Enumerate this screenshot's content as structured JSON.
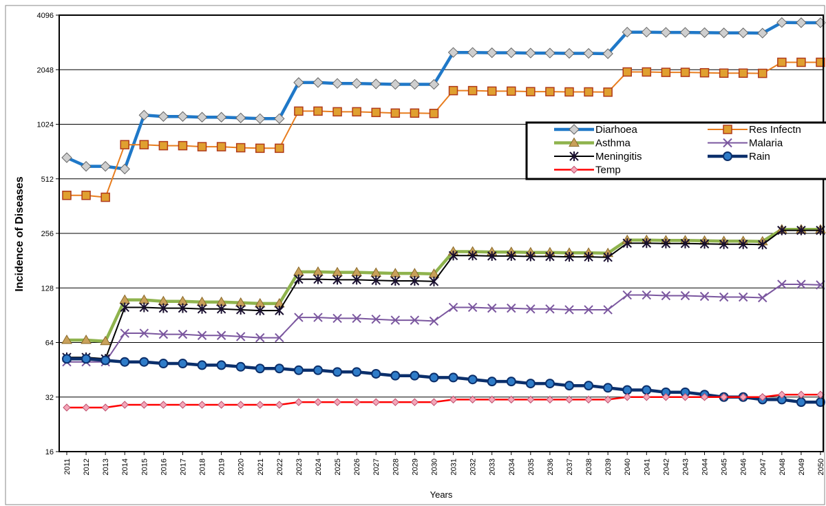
{
  "chart_data": {
    "type": "line",
    "title": "",
    "xlabel": "Years",
    "ylabel": "Incidence of Diseases",
    "yscale": "log2",
    "ylim": [
      16,
      4096
    ],
    "yticks": [
      16,
      32,
      64,
      128,
      256,
      512,
      1024,
      2048,
      4096
    ],
    "grid": "horizontal",
    "legend_position": "top-right",
    "x": [
      "2011",
      "2012",
      "2013",
      "2014",
      "2015",
      "2016",
      "2017",
      "2018",
      "2019",
      "2020",
      "2021",
      "2022",
      "2023",
      "2024",
      "2025",
      "2026",
      "2027",
      "2028",
      "2029",
      "2030",
      "2031",
      "2032",
      "2033",
      "2034",
      "2035",
      "2036",
      "2037",
      "2038",
      "2039",
      "2040",
      "2041",
      "2042",
      "2043",
      "2044",
      "2045",
      "2046",
      "2047",
      "2048",
      "2049",
      "2050"
    ],
    "series": [
      {
        "name": "Diarhoea",
        "color": "#1f78c8",
        "marker": "diamond-gray",
        "values": [
          670,
          600,
          600,
          580,
          1150,
          1130,
          1130,
          1120,
          1120,
          1110,
          1100,
          1100,
          1740,
          1740,
          1720,
          1720,
          1710,
          1700,
          1700,
          1700,
          2550,
          2550,
          2540,
          2540,
          2530,
          2530,
          2520,
          2520,
          2510,
          3300,
          3300,
          3290,
          3290,
          3280,
          3270,
          3270,
          3260,
          3730,
          3720,
          3720
        ]
      },
      {
        "name": "Res Infectn",
        "color": "#e87d1e",
        "marker": "square",
        "values": [
          415,
          415,
          405,
          790,
          790,
          780,
          780,
          770,
          770,
          760,
          755,
          755,
          1210,
          1210,
          1200,
          1200,
          1190,
          1180,
          1180,
          1175,
          1570,
          1570,
          1560,
          1560,
          1550,
          1550,
          1545,
          1545,
          1540,
          1990,
          1990,
          1980,
          1980,
          1970,
          1960,
          1960,
          1955,
          2250,
          2250,
          2250
        ]
      },
      {
        "name": "Asthma",
        "color": "#8fb34d",
        "marker": "triangle",
        "values": [
          66,
          66,
          65,
          110,
          110,
          108,
          108,
          107,
          107,
          106,
          105,
          105,
          157,
          157,
          156,
          156,
          155,
          154,
          154,
          153,
          203,
          203,
          202,
          202,
          201,
          201,
          200,
          200,
          199,
          235,
          235,
          234,
          234,
          233,
          232,
          232,
          231,
          269,
          269,
          269
        ]
      },
      {
        "name": "Malaria",
        "color": "#7b579f",
        "marker": "x",
        "values": [
          50,
          50,
          50,
          72,
          72,
          71,
          71,
          70,
          70,
          69,
          68,
          68,
          88,
          88,
          87,
          87,
          86,
          85,
          85,
          84,
          100,
          100,
          99,
          99,
          98,
          98,
          97,
          97,
          97,
          117,
          117,
          116,
          116,
          115,
          114,
          114,
          113,
          134,
          134,
          133
        ]
      },
      {
        "name": "Meningitis",
        "color": "#000000",
        "marker": "star",
        "values": [
          53,
          53,
          52,
          100,
          100,
          99,
          99,
          98,
          98,
          97,
          96,
          96,
          143,
          143,
          142,
          142,
          141,
          140,
          140,
          139,
          193,
          193,
          192,
          192,
          191,
          191,
          190,
          190,
          189,
          226,
          226,
          225,
          225,
          224,
          223,
          223,
          222,
          266,
          266,
          266
        ]
      },
      {
        "name": "Rain",
        "color": "#0b2f6b",
        "marker": "circle",
        "values": [
          52,
          52,
          51,
          50,
          50,
          49,
          49,
          48,
          48,
          47,
          46,
          46,
          45,
          45,
          44,
          44,
          43,
          42,
          42,
          41,
          41,
          40,
          39,
          39,
          38,
          38,
          37,
          37,
          36,
          35,
          35,
          34,
          34,
          33,
          32,
          32,
          31,
          31,
          30,
          30
        ]
      },
      {
        "name": "Temp",
        "color": "#ff0000",
        "marker": "diamond-pink",
        "values": [
          28,
          28,
          28,
          29,
          29,
          29,
          29,
          29,
          29,
          29,
          29,
          29,
          30,
          30,
          30,
          30,
          30,
          30,
          30,
          30,
          31,
          31,
          31,
          31,
          31,
          31,
          31,
          31,
          31,
          32,
          32,
          32,
          32,
          32,
          32,
          32,
          32,
          33,
          33,
          33
        ]
      }
    ]
  }
}
